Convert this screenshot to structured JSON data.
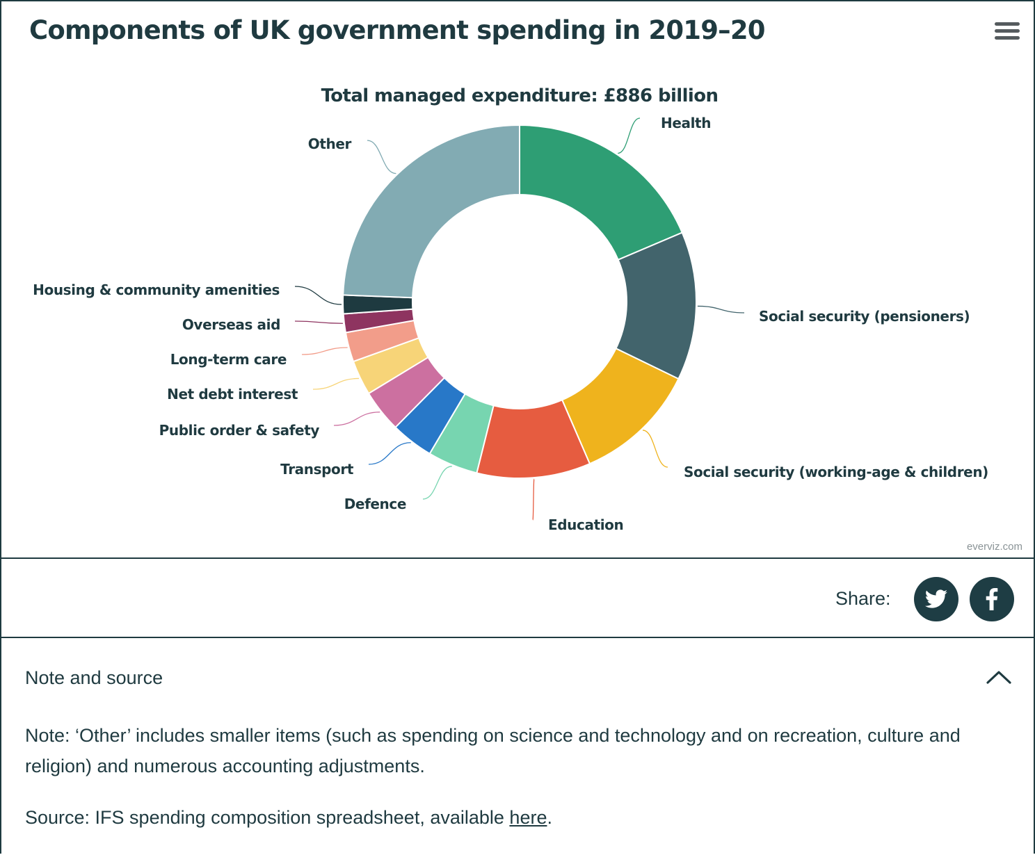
{
  "header": {
    "title": "Components of UK government spending in 2019–20",
    "menu_icon": "hamburger-menu-icon"
  },
  "chart_data": {
    "type": "pie",
    "subtitle": "Total managed expenditure: £886 billion",
    "donut": true,
    "series": [
      {
        "label": "Health",
        "value": 18.6,
        "color": "#2e9e74"
      },
      {
        "label": "Social security (pensioners)",
        "value": 13.6,
        "color": "#42646c"
      },
      {
        "label": "Social security (working-age & children)",
        "value": 11.3,
        "color": "#efb31d"
      },
      {
        "label": "Education",
        "value": 10.4,
        "color": "#e65c40"
      },
      {
        "label": "Defence",
        "value": 4.6,
        "color": "#77d5b0"
      },
      {
        "label": "Transport",
        "value": 3.9,
        "color": "#2878c8"
      },
      {
        "label": "Public order & safety",
        "value": 3.9,
        "color": "#cc70a0"
      },
      {
        "label": "Net debt interest",
        "value": 3.2,
        "color": "#f7d478"
      },
      {
        "label": "Long-term care",
        "value": 2.7,
        "color": "#f29d8a"
      },
      {
        "label": "Overseas aid",
        "value": 1.7,
        "color": "#8e3460"
      },
      {
        "label": "Housing & community amenities",
        "value": 1.7,
        "color": "#1e3a40"
      },
      {
        "label": "Other",
        "value": 24.4,
        "color": "#82abb3"
      }
    ]
  },
  "credit": "everviz.com",
  "share": {
    "label": "Share:",
    "twitter_icon": "twitter-bird-icon",
    "facebook_icon": "facebook-f-icon"
  },
  "note": {
    "heading": "Note and source",
    "text": "Note: ‘Other’ includes smaller items (such as spending on science and technology and on recreation, culture and religion) and numerous accounting adjustments.",
    "source_prefix": "Source: IFS spending composition spreadsheet, available ",
    "source_link": "here",
    "source_suffix": "."
  }
}
